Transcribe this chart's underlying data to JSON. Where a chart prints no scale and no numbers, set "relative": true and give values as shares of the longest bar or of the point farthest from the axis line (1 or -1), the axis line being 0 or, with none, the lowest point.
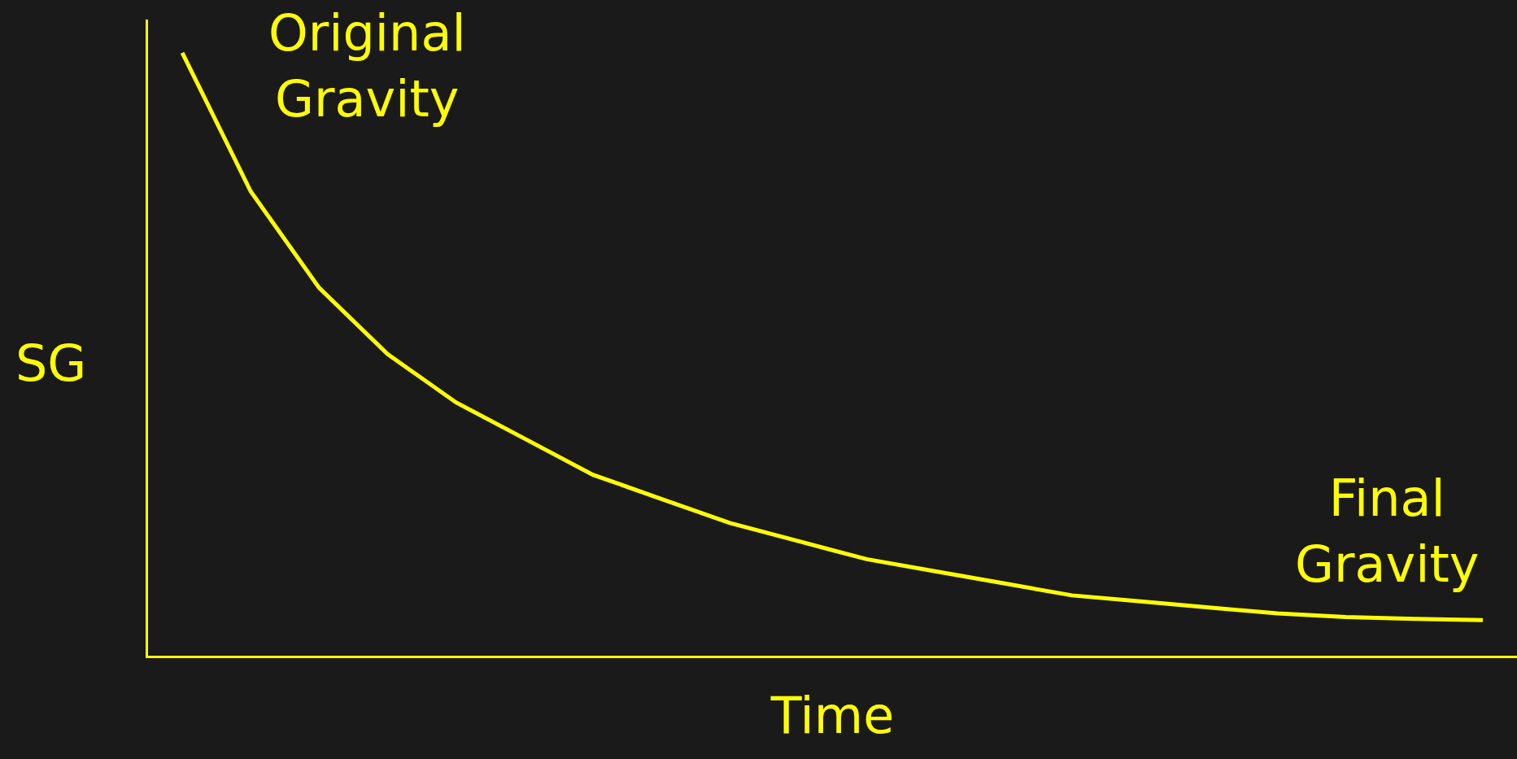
{
  "chart_data": {
    "type": "line",
    "relative": true,
    "xlabel": "Time",
    "ylabel": "SG",
    "categories": [
      null,
      null,
      null,
      null,
      null,
      null,
      null,
      null,
      null,
      null,
      null,
      null,
      null,
      null,
      null,
      null,
      null,
      null,
      null,
      null
    ],
    "series": [
      {
        "color": "#ffff00",
        "values": [
          1.0,
          0.77,
          0.61,
          0.5,
          0.42,
          0.36,
          0.3,
          0.26,
          0.22,
          0.19,
          0.16,
          0.14,
          0.12,
          0.1,
          0.09,
          0.08,
          0.07,
          0.064,
          0.061,
          0.059
        ]
      }
    ],
    "annotations": [
      "Original Gravity",
      "Final Gravity"
    ],
    "marker": "none",
    "line_style": "solid"
  }
}
